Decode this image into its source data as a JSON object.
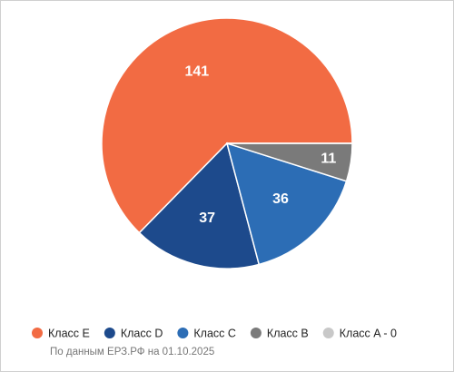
{
  "chart_data": {
    "type": "pie",
    "categories": [
      "Класс E",
      "Класс D",
      "Класс C",
      "Класс B",
      "Класс A - 0"
    ],
    "values": [
      141,
      37,
      36,
      11,
      0
    ],
    "colors": [
      "#f26b43",
      "#1d4a8c",
      "#2c6db5",
      "#7a7a7a",
      "#c8c8c8"
    ],
    "note": "По данным ЕРЗ.РФ на 01.10.2025"
  }
}
